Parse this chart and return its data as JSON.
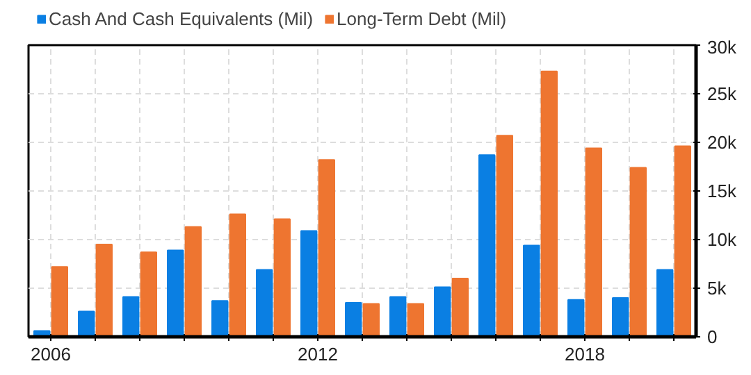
{
  "chart_data": {
    "type": "bar",
    "x": [
      2006,
      2007,
      2008,
      2009,
      2010,
      2011,
      2012,
      2013,
      2014,
      2015,
      2016,
      2017,
      2018,
      2019,
      2020
    ],
    "series": [
      {
        "name": "Cash And Cash Equivalents (Mil)",
        "color": "#0a7fe3",
        "values": [
          0.6,
          2.6,
          4.1,
          8.9,
          3.7,
          6.9,
          10.9,
          3.5,
          4.1,
          5.1,
          18.7,
          9.4,
          3.8,
          4.0,
          6.9
        ]
      },
      {
        "name": "Long-Term Debt (Mil)",
        "color": "#ee7530",
        "values": [
          7.2,
          9.5,
          8.7,
          11.3,
          12.6,
          12.1,
          18.2,
          3.4,
          3.4,
          6.0,
          20.7,
          27.3,
          19.4,
          17.4,
          19.6
        ]
      }
    ],
    "xlim": [
      2005.5,
      2020.5
    ],
    "xticks": [
      2006,
      {
        "value": 2007,
        "label": null
      },
      {
        "value": 2008,
        "label": null
      },
      {
        "value": 2009,
        "label": null
      },
      {
        "value": 2010,
        "label": null
      },
      {
        "value": 2011,
        "label": null
      },
      2012,
      {
        "value": 2013,
        "label": null
      },
      {
        "value": 2014,
        "label": null
      },
      {
        "value": 2015,
        "label": null
      },
      {
        "value": 2016,
        "label": null
      },
      {
        "value": 2017,
        "label": null
      },
      2018,
      {
        "value": 2019,
        "label": null
      },
      {
        "value": 2020,
        "label": null
      }
    ],
    "ylim": [
      0,
      30
    ],
    "yticks": [
      0,
      {
        "value": 5,
        "label": "5k"
      },
      {
        "value": 10,
        "label": "10k"
      },
      {
        "value": 15,
        "label": "15k"
      },
      {
        "value": 20,
        "label": "20k"
      },
      {
        "value": 25,
        "label": "25k"
      },
      {
        "value": 30,
        "label": "30k"
      }
    ],
    "grid": true,
    "legend": "top left"
  }
}
